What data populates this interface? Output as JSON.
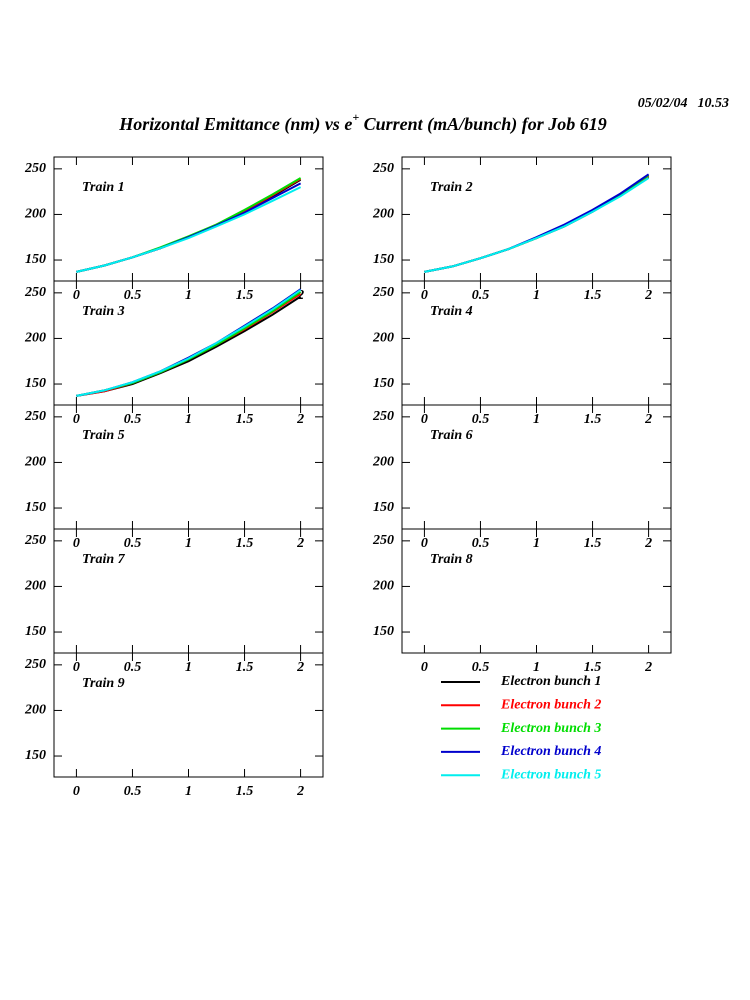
{
  "chart_data": {
    "type": "line",
    "title": [
      "Horizontal Emittance (nm) vs e",
      "+",
      " Current (mA/bunch) for Job 619"
    ],
    "date": "05/02/04",
    "time": "10.53",
    "x": [
      0,
      0.25,
      0.5,
      0.75,
      1,
      1.25,
      1.5,
      1.75,
      2
    ],
    "xlim": [
      -0.2,
      2.2
    ],
    "ylim": [
      127,
      263
    ],
    "xticks": [
      0,
      0.5,
      1,
      1.5,
      2
    ],
    "yticks": [
      150,
      200,
      250
    ],
    "legend": [
      {
        "name": "Electron bunch 1",
        "color": "#000000"
      },
      {
        "name": "Electron bunch 2",
        "color": "#ff0000"
      },
      {
        "name": "Electron bunch 3",
        "color": "#00dd00"
      },
      {
        "name": "Electron bunch 4",
        "color": "#0000cc"
      },
      {
        "name": "Electron bunch 5",
        "color": "#00eeee"
      }
    ],
    "panels": [
      {
        "label": "Train 1",
        "series": [
          [
            137,
            144,
            153,
            163,
            175,
            188,
            203,
            220,
            238
          ],
          [
            137,
            144,
            153,
            163,
            175,
            189,
            204,
            221,
            239
          ],
          [
            137,
            144,
            153,
            164,
            176,
            189,
            205,
            222,
            240
          ],
          [
            137,
            144,
            153,
            163,
            175,
            188,
            202,
            218,
            234
          ],
          [
            137,
            144,
            153,
            163,
            174,
            187,
            200,
            215,
            230
          ]
        ]
      },
      {
        "label": "Train 2",
        "series": [
          [
            137,
            143,
            152,
            162,
            174,
            187,
            203,
            221,
            241
          ],
          [
            137,
            143,
            152,
            162,
            174,
            188,
            204,
            222,
            242
          ],
          [
            137,
            143,
            152,
            162,
            174,
            188,
            204,
            222,
            243
          ],
          [
            137,
            143,
            152,
            162,
            175,
            189,
            205,
            223,
            244
          ],
          [
            137,
            143,
            152,
            162,
            174,
            187,
            203,
            220,
            240
          ]
        ]
      },
      {
        "label": "Train 3",
        "series": [
          [
            137,
            142,
            150,
            162,
            175,
            191,
            208,
            226,
            246
          ],
          [
            137,
            142,
            151,
            163,
            177,
            193,
            210,
            229,
            249
          ],
          [
            137,
            143,
            151,
            163,
            177,
            193,
            211,
            230,
            251
          ],
          [
            137,
            143,
            152,
            164,
            179,
            195,
            214,
            233,
            254
          ],
          [
            137,
            143,
            152,
            164,
            178,
            195,
            213,
            232,
            253
          ]
        ]
      },
      {
        "label": "Train 4",
        "series": []
      },
      {
        "label": "Train 5",
        "series": []
      },
      {
        "label": "Train 6",
        "series": []
      },
      {
        "label": "Train 7",
        "series": []
      },
      {
        "label": "Train 8",
        "series": []
      },
      {
        "label": "Train 9",
        "series": []
      }
    ]
  }
}
